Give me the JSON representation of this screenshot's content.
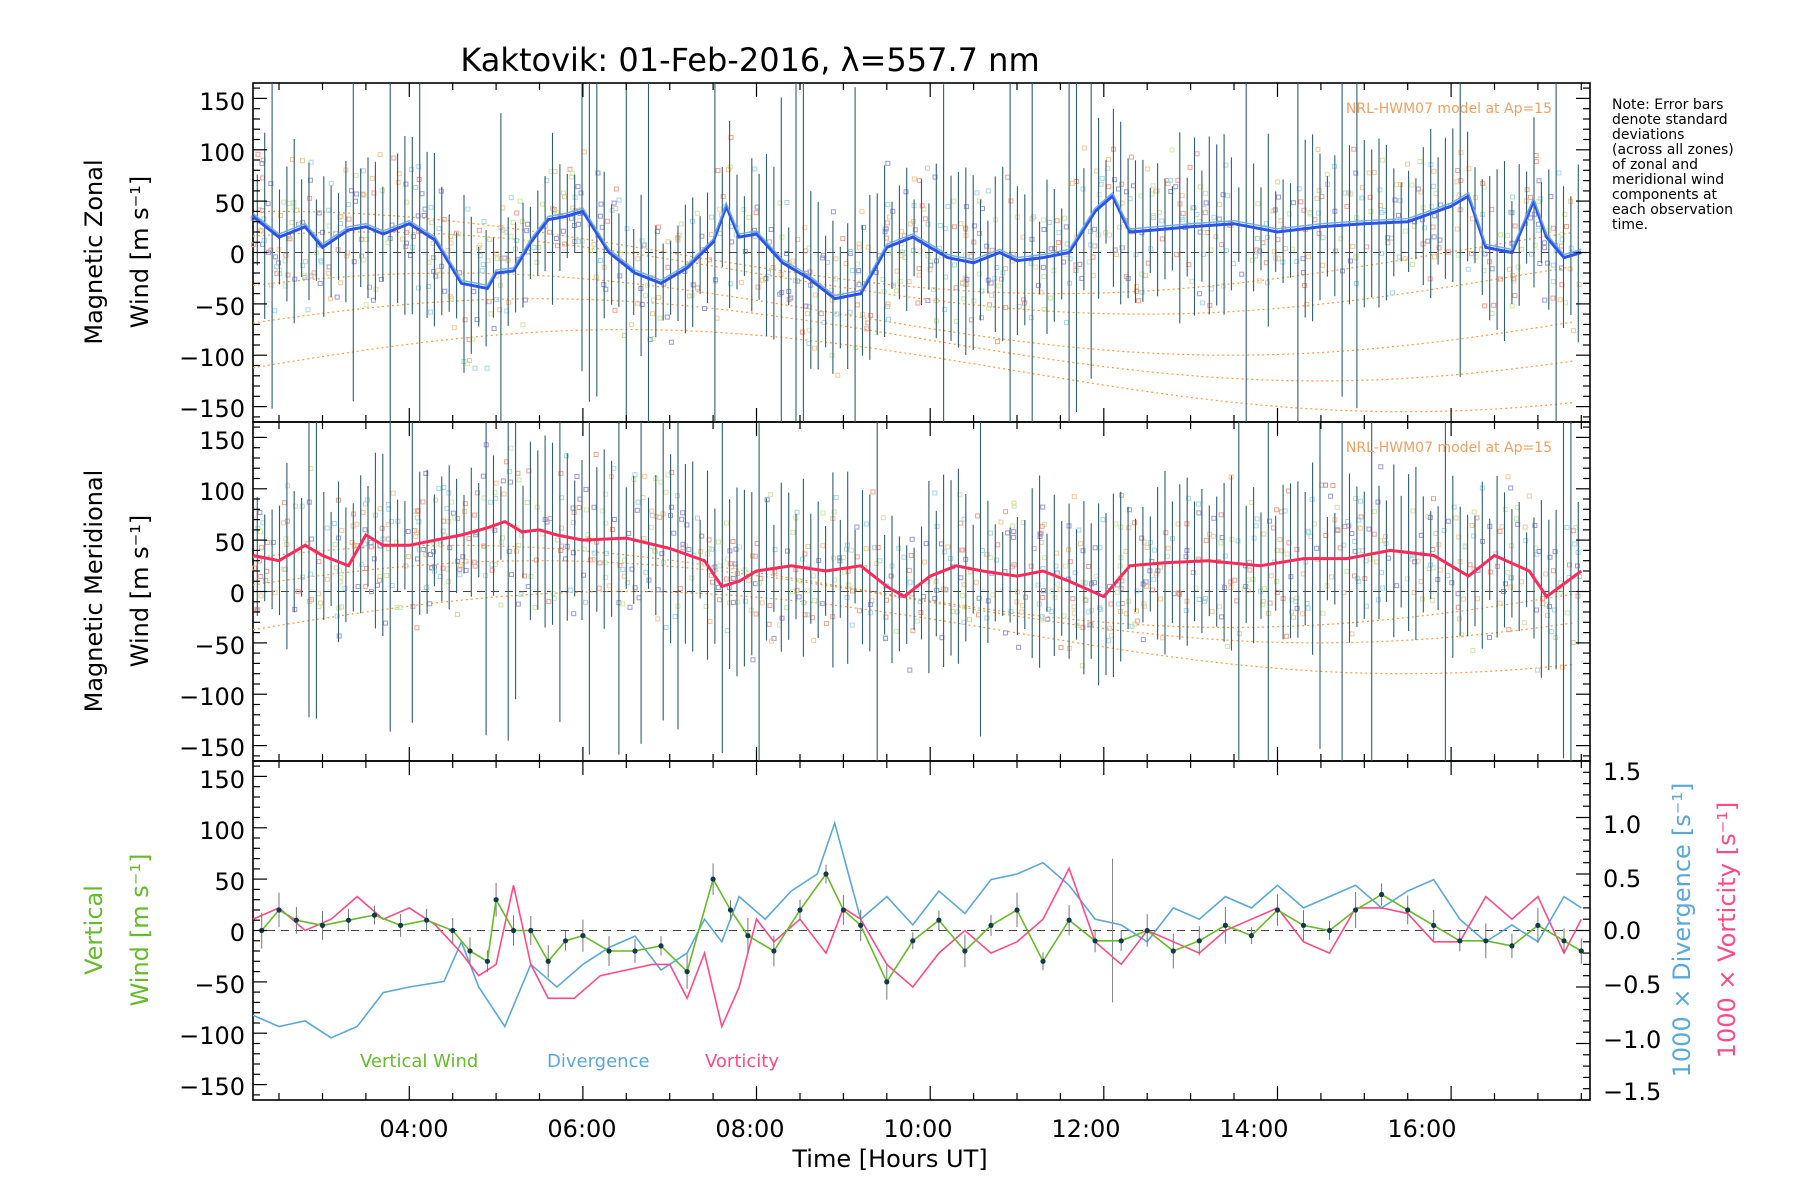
{
  "colors": {
    "zonal_mean": "#2b55e8",
    "zonal_light": "#6aa8ea",
    "meridional_mean": "#ff2a5a",
    "vertical": "#66bb2a",
    "divergence": "#5aa8d8",
    "vorticity": "#ff4a88",
    "model": "#ff9a40",
    "errorbar": "#2f5f6f",
    "samples_blue": "#9a9ad8",
    "samples_red": "#f4a090",
    "samples_orange": "#f6c898",
    "samples_green": "#cfe8a8",
    "samples_cyan": "#a8d8e8"
  },
  "chart_data": [
    {
      "type": "line",
      "title": "Kaktovik: 01-Feb-2016, λ=557.7 nm",
      "ylabel_line1": "Magnetic Zonal",
      "ylabel_line2": "Wind [m s⁻¹]",
      "ylim": [
        -165,
        165
      ],
      "yticks": [
        "150",
        "100",
        "50",
        "0",
        "−50",
        "−100",
        "−150"
      ],
      "model_label": "NRL-HWM07 model at Ap=15",
      "note_lines": [
        "Note: Error bars",
        "denote standard",
        "deviations",
        "(across all zones)",
        "of zonal and",
        "meridional wind",
        "components at",
        "each observation",
        "time."
      ],
      "x": [
        2.2,
        2.5,
        2.8,
        3.0,
        3.3,
        3.5,
        3.7,
        4.0,
        4.3,
        4.6,
        4.9,
        5.0,
        5.2,
        5.4,
        5.6,
        5.8,
        6.0,
        6.3,
        6.6,
        6.9,
        7.2,
        7.5,
        7.65,
        7.8,
        8.0,
        8.3,
        8.6,
        8.9,
        9.2,
        9.5,
        9.8,
        10.0,
        10.2,
        10.5,
        10.8,
        11.0,
        11.3,
        11.6,
        11.9,
        12.1,
        12.3,
        12.6,
        13.0,
        13.5,
        14.0,
        14.5,
        15.0,
        15.5,
        16.0,
        16.2,
        16.4,
        16.7,
        16.95,
        17.1,
        17.3,
        17.5
      ],
      "series": [
        {
          "values": [
            35,
            15,
            25,
            5,
            22,
            25,
            18,
            28,
            12,
            -30,
            -35,
            -20,
            -18,
            10,
            32,
            35,
            40,
            0,
            -20,
            -30,
            -15,
            10,
            45,
            15,
            18,
            -10,
            -25,
            -45,
            -40,
            5,
            15,
            5,
            -5,
            -10,
            0,
            -8,
            -5,
            0,
            40,
            55,
            20,
            22,
            25,
            28,
            20,
            25,
            28,
            30,
            45,
            55,
            5,
            0,
            50,
            15,
            -5,
            0
          ]
        }
      ]
    },
    {
      "type": "line",
      "ylabel_line1": "Magnetic Meridional",
      "ylabel_line2": "Wind [m s⁻¹]",
      "ylim": [
        -165,
        165
      ],
      "yticks": [
        "150",
        "100",
        "50",
        "0",
        "−50",
        "−100",
        "−150"
      ],
      "model_label": "NRL-HWM07 model at Ap=15",
      "x": [
        2.2,
        2.5,
        2.8,
        3.0,
        3.3,
        3.5,
        3.7,
        4.0,
        4.3,
        4.6,
        4.9,
        5.1,
        5.3,
        5.5,
        5.7,
        6.0,
        6.5,
        7.0,
        7.4,
        7.6,
        7.8,
        8.0,
        8.4,
        8.8,
        9.2,
        9.5,
        9.7,
        10.0,
        10.3,
        10.6,
        11.0,
        11.3,
        11.6,
        12.0,
        12.3,
        12.7,
        13.2,
        13.8,
        14.3,
        14.8,
        15.3,
        15.8,
        16.2,
        16.5,
        16.9,
        17.1,
        17.5
      ],
      "series": [
        {
          "values": [
            35,
            30,
            45,
            35,
            25,
            55,
            45,
            45,
            50,
            55,
            62,
            68,
            58,
            60,
            55,
            50,
            52,
            42,
            30,
            5,
            10,
            20,
            25,
            20,
            25,
            5,
            -5,
            15,
            25,
            20,
            15,
            20,
            10,
            -5,
            25,
            28,
            30,
            25,
            32,
            32,
            40,
            35,
            15,
            35,
            20,
            -5,
            20
          ]
        }
      ]
    },
    {
      "type": "line",
      "ylabel_line1": "Vertical",
      "ylabel_line2_word": "Wind",
      "ylabel_line2_unit": "[m s⁻¹]",
      "ylim": [
        -165,
        165
      ],
      "yticks": [
        "150",
        "100",
        "50",
        "0",
        "−50",
        "−100",
        "−150"
      ],
      "y2lim": [
        -1.5,
        1.5
      ],
      "y2ticks": [
        "1.5",
        "1.0",
        "0.5",
        "0.0",
        "−0.5",
        "−1.0",
        "−1.5"
      ],
      "y2label_div_word": "1000 × Divergence",
      "y2label_div_unit": "[s⁻¹]",
      "y2label_vort_word": "1000 × Vorticity",
      "y2label_vort_unit": "[s⁻¹]",
      "xlabel": "Time [Hours UT]",
      "xticks": [
        "04:00",
        "06:00",
        "08:00",
        "10:00",
        "12:00",
        "14:00",
        "16:00"
      ],
      "xlim": [
        2.2,
        17.6
      ],
      "legend": [
        "Vertical Wind",
        "Divergence",
        "Vorticity"
      ],
      "vertical_wind": {
        "x": [
          2.3,
          2.5,
          2.7,
          3.0,
          3.3,
          3.6,
          3.9,
          4.2,
          4.5,
          4.7,
          4.9,
          5.0,
          5.2,
          5.4,
          5.6,
          5.8,
          6.0,
          6.3,
          6.6,
          6.9,
          7.2,
          7.5,
          7.7,
          7.9,
          8.2,
          8.5,
          8.8,
          9.0,
          9.2,
          9.5,
          9.8,
          10.1,
          10.4,
          10.7,
          11.0,
          11.3,
          11.6,
          11.9,
          12.2,
          12.5,
          12.8,
          13.1,
          13.4,
          13.7,
          14.0,
          14.3,
          14.6,
          14.9,
          15.2,
          15.5,
          15.8,
          16.1,
          16.4,
          16.7,
          17.0,
          17.3,
          17.5
        ],
        "values": [
          0,
          20,
          10,
          5,
          10,
          15,
          5,
          10,
          0,
          -20,
          -30,
          30,
          0,
          0,
          -30,
          -10,
          -5,
          -20,
          -20,
          -15,
          -40,
          50,
          20,
          -5,
          -20,
          20,
          55,
          20,
          5,
          -50,
          -10,
          10,
          -20,
          5,
          20,
          -30,
          10,
          -10,
          -10,
          0,
          -20,
          -10,
          5,
          -5,
          20,
          5,
          0,
          20,
          35,
          20,
          5,
          -10,
          -10,
          -15,
          5,
          -10,
          -20
        ]
      },
      "divergence": {
        "x": [
          2.2,
          2.5,
          2.8,
          3.1,
          3.4,
          3.7,
          4.0,
          4.4,
          4.6,
          4.8,
          5.1,
          5.4,
          5.7,
          6.0,
          6.3,
          6.6,
          6.9,
          7.2,
          7.4,
          7.6,
          7.8,
          8.1,
          8.4,
          8.7,
          8.9,
          9.2,
          9.5,
          9.8,
          10.1,
          10.4,
          10.7,
          11.0,
          11.3,
          11.6,
          11.9,
          12.2,
          12.5,
          12.8,
          13.1,
          13.4,
          13.7,
          14.0,
          14.3,
          14.6,
          14.9,
          15.2,
          15.5,
          15.8,
          16.1,
          16.4,
          16.7,
          17.0,
          17.3,
          17.5
        ],
        "values": [
          -0.75,
          -0.85,
          -0.8,
          -0.95,
          -0.85,
          -0.55,
          -0.5,
          -0.45,
          -0.1,
          -0.5,
          -0.85,
          -0.3,
          -0.5,
          -0.3,
          -0.15,
          -0.05,
          -0.35,
          -0.2,
          0.1,
          -0.1,
          0.3,
          0.1,
          0.35,
          0.5,
          0.95,
          0.1,
          0.3,
          0.05,
          0.35,
          0.15,
          0.45,
          0.5,
          0.6,
          0.4,
          0.1,
          0.05,
          -0.1,
          0.2,
          0.1,
          0.3,
          0.2,
          0.4,
          0.2,
          0.3,
          0.4,
          0.2,
          0.35,
          0.45,
          0.1,
          -0.1,
          0.05,
          -0.1,
          0.3,
          0.2
        ]
      },
      "vorticity": {
        "x": [
          2.2,
          2.5,
          2.8,
          3.1,
          3.4,
          3.7,
          4.0,
          4.3,
          4.6,
          4.8,
          5.0,
          5.2,
          5.4,
          5.6,
          5.9,
          6.2,
          6.5,
          6.8,
          7.0,
          7.2,
          7.4,
          7.6,
          7.8,
          8.0,
          8.2,
          8.5,
          8.8,
          9.0,
          9.2,
          9.5,
          9.8,
          10.1,
          10.4,
          10.7,
          11.0,
          11.3,
          11.6,
          11.9,
          12.2,
          12.5,
          12.8,
          13.1,
          13.4,
          13.7,
          14.0,
          14.3,
          14.6,
          14.9,
          15.2,
          15.5,
          15.8,
          16.1,
          16.4,
          16.7,
          17.0,
          17.3,
          17.5
        ],
        "values": [
          0.1,
          0.2,
          0.0,
          0.1,
          0.3,
          0.1,
          0.2,
          0.05,
          -0.2,
          -0.4,
          -0.3,
          0.4,
          -0.3,
          -0.6,
          -0.6,
          -0.4,
          -0.35,
          -0.3,
          -0.3,
          -0.6,
          -0.2,
          -0.85,
          -0.5,
          0.1,
          -0.1,
          0.1,
          -0.2,
          0.2,
          0.1,
          -0.3,
          -0.5,
          -0.2,
          0.0,
          -0.2,
          -0.1,
          0.1,
          0.55,
          -0.1,
          -0.3,
          0.0,
          -0.1,
          -0.2,
          0.0,
          0.1,
          0.2,
          -0.1,
          -0.2,
          0.2,
          0.2,
          0.15,
          -0.1,
          -0.1,
          0.3,
          0.1,
          0.3,
          -0.2,
          0.1
        ]
      }
    }
  ]
}
